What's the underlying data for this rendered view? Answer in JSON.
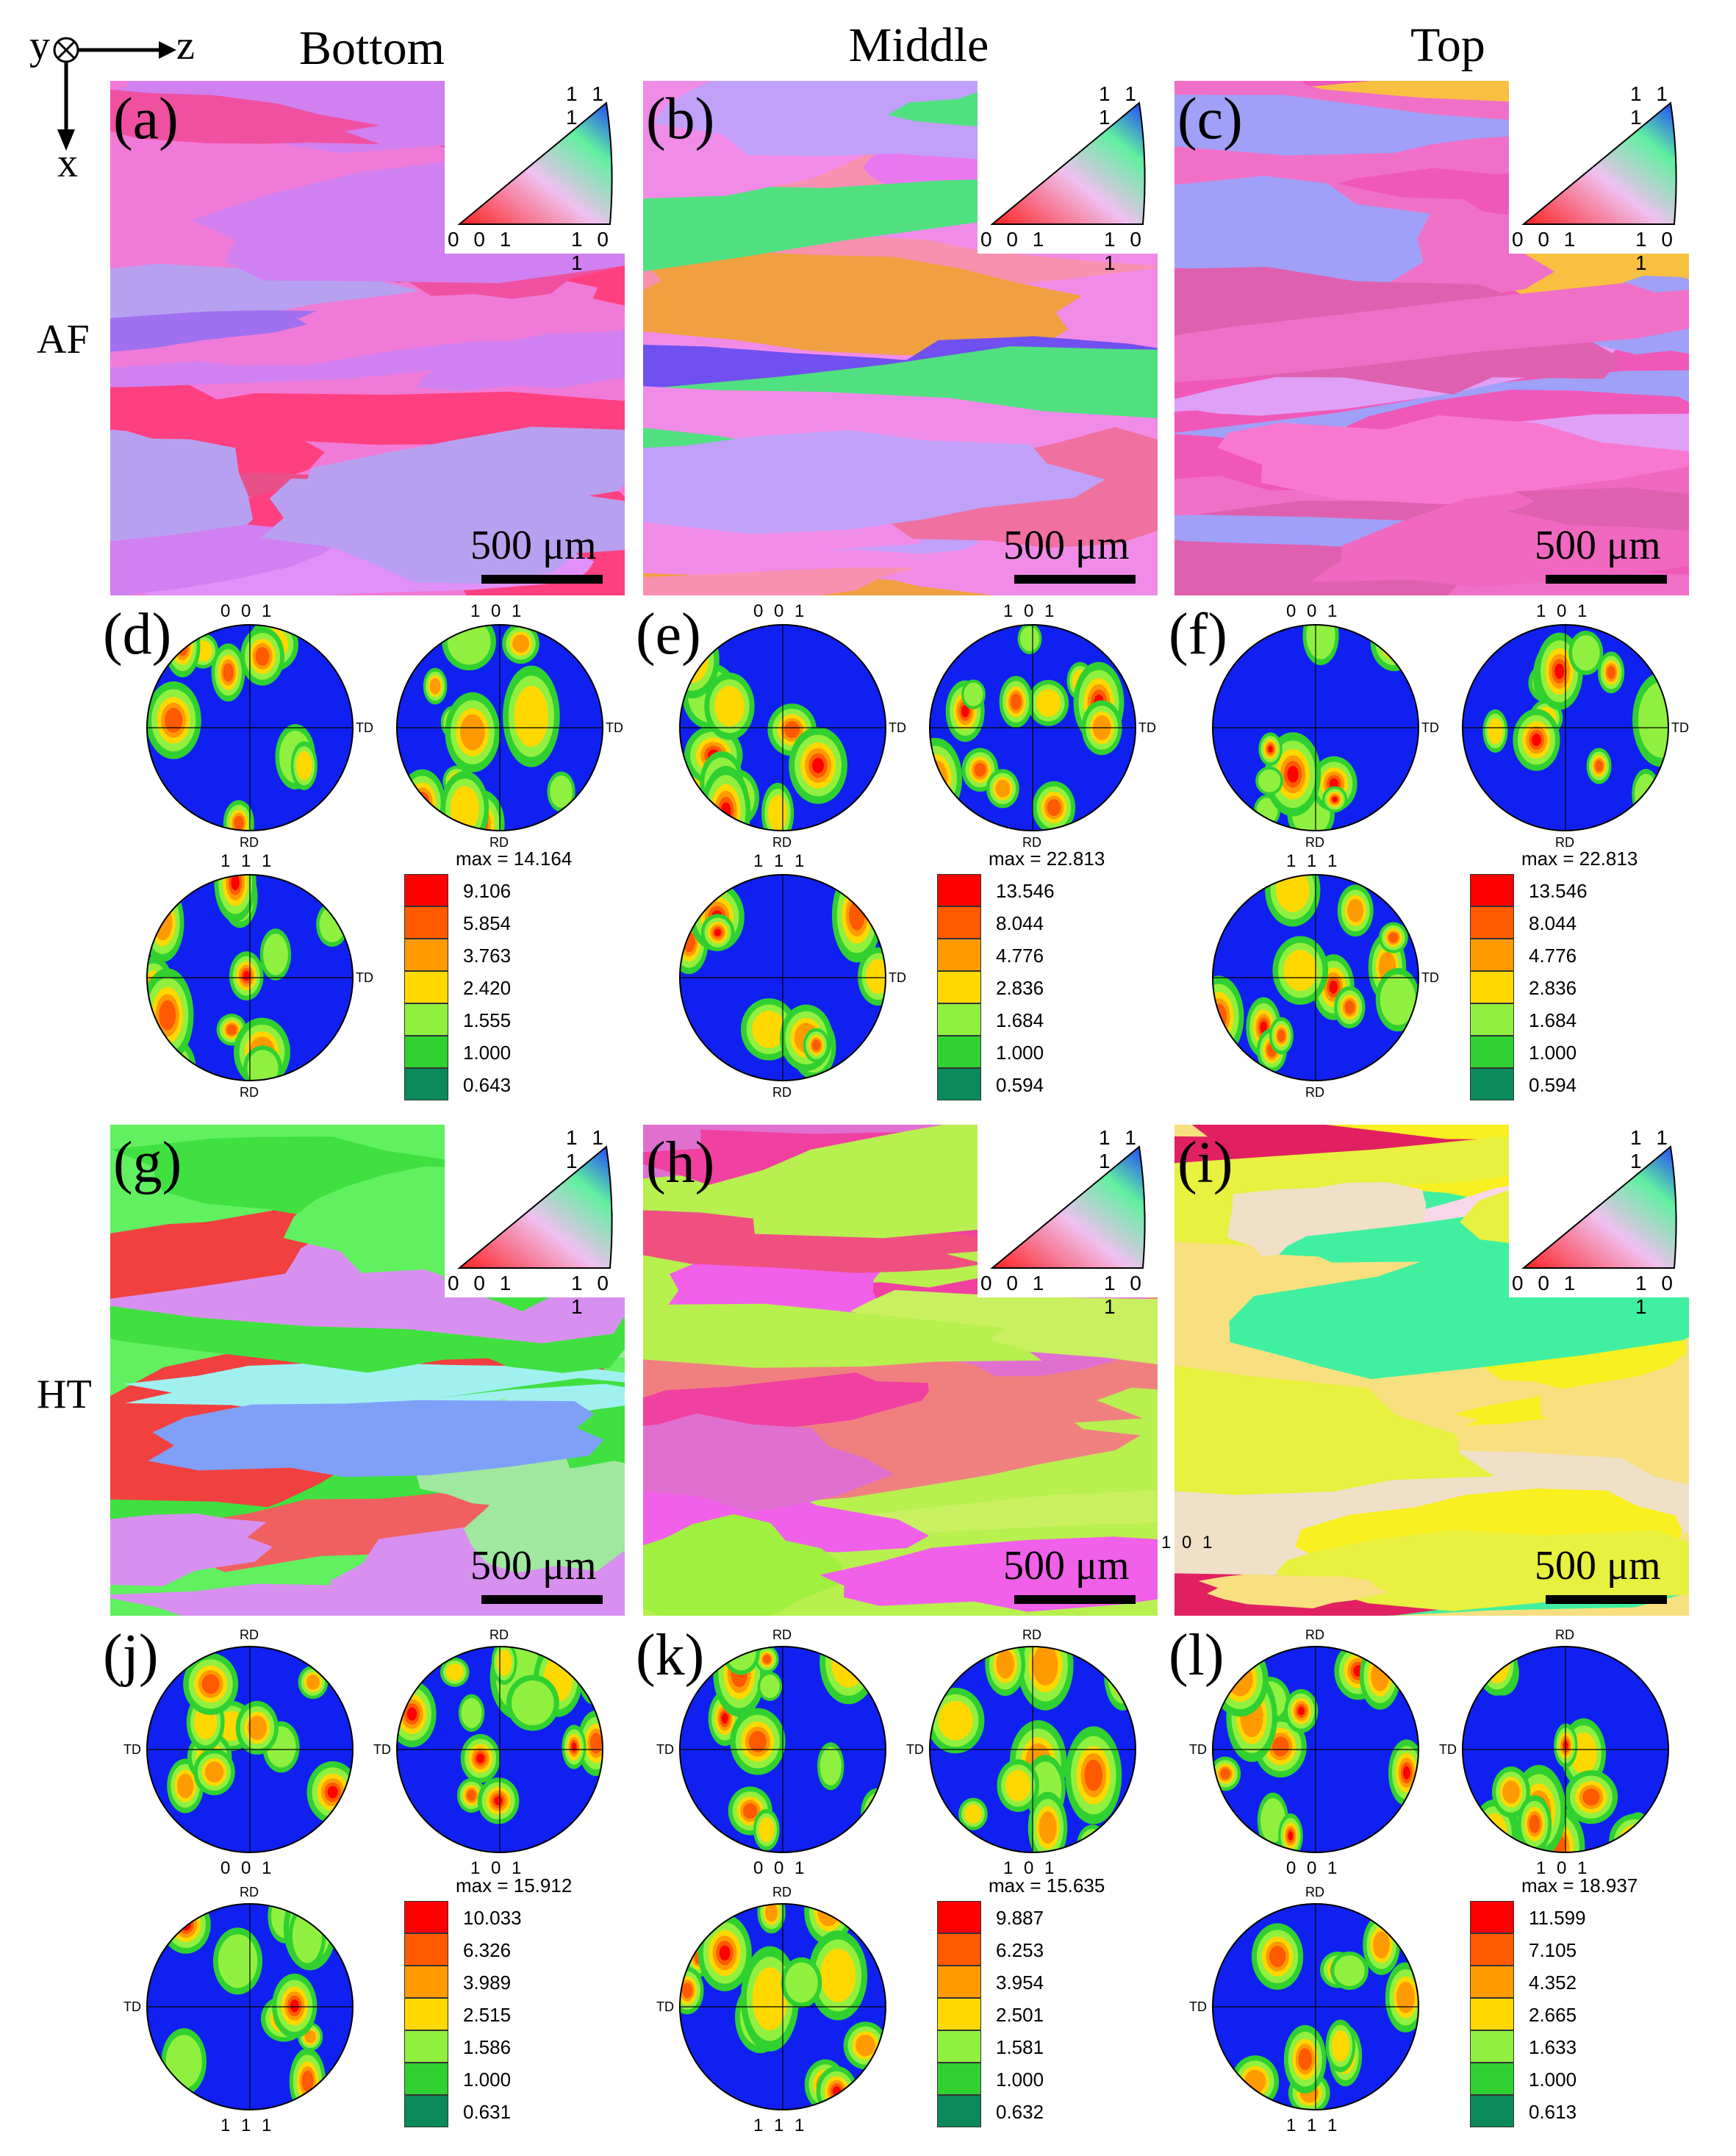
{
  "axes": {
    "y": "y",
    "z": "z",
    "x": "x"
  },
  "columns": [
    "Bottom",
    "Middle",
    "Top"
  ],
  "rows": [
    "AF",
    "HT"
  ],
  "ipf_key": {
    "top": "1 1 1",
    "left": "0 0 1",
    "right": "1 0 1"
  },
  "scale_label": "500 μm",
  "panels": {
    "a": {
      "label": "(a)",
      "palette": [
        "#f07ad8",
        "#e8508a",
        "#d080f0",
        "#a070f0",
        "#f050a0",
        "#b8a0f0",
        "#ff4080",
        "#e090f8"
      ]
    },
    "b": {
      "label": "(b)",
      "palette": [
        "#f08ce8",
        "#f0a040",
        "#e878f0",
        "#7050f0",
        "#f070a0",
        "#c0a0f8",
        "#f890b0",
        "#50e080"
      ]
    },
    "c": {
      "label": "(c)",
      "palette": [
        "#f058b8",
        "#f068c0",
        "#f878d0",
        "#e060b0",
        "#a0a0f8",
        "#e0a0f8",
        "#f8c040",
        "#f070c8"
      ]
    },
    "g": {
      "label": "(g)",
      "palette": [
        "#60f060",
        "#40e040",
        "#d890f0",
        "#f06060",
        "#80a0f8",
        "#a0f0f0",
        "#f04040",
        "#a0e8a0"
      ]
    },
    "h": {
      "label": "(h)",
      "palette": [
        "#b8f050",
        "#a0f040",
        "#f060e8",
        "#f05080",
        "#f08080",
        "#c8f060",
        "#f040a0",
        "#e070d0"
      ]
    },
    "i": {
      "label": "(i)",
      "palette": [
        "#f8e080",
        "#f0e0c8",
        "#f8d8e8",
        "#e8f040",
        "#40f0a0",
        "#f8f020",
        "#e02060",
        "#f0f060"
      ]
    }
  },
  "pole_figures": {
    "d": {
      "label": "(d)",
      "side": "TD",
      "bottom": "RD",
      "titles": [
        "0 0 1",
        "1 0 1",
        "1 1 1"
      ],
      "max": "max = 14.164",
      "levels": [
        "9.106",
        "5.854",
        "3.763",
        "2.420",
        "1.555",
        "1.000",
        "0.643"
      ]
    },
    "e": {
      "label": "(e)",
      "side": "TD",
      "bottom": "RD",
      "titles": [
        "0 0 1",
        "1 0 1",
        "1 1 1"
      ],
      "max": "max = 22.813",
      "levels": [
        "13.546",
        "8.044",
        "4.776",
        "2.836",
        "1.684",
        "1.000",
        "0.594"
      ]
    },
    "f": {
      "label": "(f)",
      "side": "TD",
      "bottom": "RD",
      "titles": [
        "0 0 1",
        "1 0 1",
        "1 1 1"
      ],
      "max": "max = 22.813",
      "levels": [
        "13.546",
        "8.044",
        "4.776",
        "2.836",
        "1.684",
        "1.000",
        "0.594"
      ]
    },
    "j": {
      "label": "(j)",
      "side": "TD",
      "top": "RD",
      "titles": [
        "0 0 1",
        "1 0 1",
        "1 1 1"
      ],
      "max": "max = 15.912",
      "levels": [
        "10.033",
        "6.326",
        "3.989",
        "2.515",
        "1.586",
        "1.000",
        "0.631"
      ]
    },
    "k": {
      "label": "(k)",
      "side": "TD",
      "top": "RD",
      "titles": [
        "0 0 1",
        "1 0 1",
        "1 1 1"
      ],
      "max": "max = 15.635",
      "levels": [
        "9.887",
        "6.253",
        "3.954",
        "2.501",
        "1.581",
        "1.000",
        "0.632"
      ]
    },
    "l": {
      "label": "(l)",
      "side": "TD",
      "top": "RD",
      "titles": [
        "0 0 1",
        "1 0 1",
        "1 1 1"
      ],
      "max": "max = 18.937",
      "levels": [
        "11.599",
        "7.105",
        "4.352",
        "2.665",
        "1.633",
        "1.000",
        "0.613"
      ]
    }
  },
  "legend_colors": [
    "#ff0000",
    "#ff5a00",
    "#ff9a00",
    "#ffd800",
    "#90f040",
    "#30d030",
    "#0a8a5a",
    "#1020f0"
  ],
  "stray_label": "1 0 1"
}
